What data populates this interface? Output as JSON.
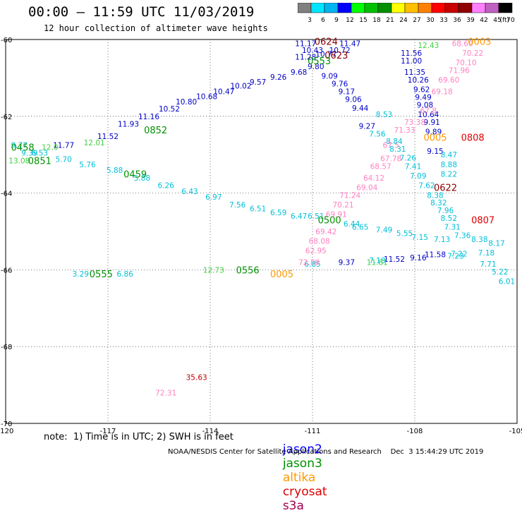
{
  "header": {
    "title": "00:00 – 11:59 UTC 11/03/2019",
    "subtitle": "12 hour collection of altimeter wave heights"
  },
  "color_scale": {
    "unit_label": "(ft)",
    "ticks": [
      "3",
      "6",
      "9",
      "12",
      "15",
      "18",
      "21",
      "24",
      "27",
      "30",
      "33",
      "36",
      "39",
      "42",
      "45",
      "70"
    ],
    "colors": [
      "#808080",
      "#00e5ff",
      "#00b4f0",
      "#0000ff",
      "#00ff00",
      "#00c000",
      "#009000",
      "#ffff00",
      "#ffc000",
      "#ff8000",
      "#ff0000",
      "#c80000",
      "#900000",
      "#ff80ff",
      "#c060c0",
      "#000000"
    ]
  },
  "footer": {
    "note": "note:  1) Time is in UTC; 2) SWH is in feet",
    "credit": "NOAA/NESDIS Center for Satellite Applications and Research    Dec  3 15:44:29 UTC 2019",
    "legend": [
      {
        "name": "jason2",
        "color": "#0000ff"
      },
      {
        "name": "jason3",
        "color": "#009000"
      },
      {
        "name": "altika",
        "color": "#ff9900"
      },
      {
        "name": "cryosat",
        "color": "#e00000"
      },
      {
        "name": "s3a",
        "color": "#a00050"
      }
    ]
  },
  "chart_data": {
    "type": "scatter",
    "title": "00:00 – 11:59 UTC 11/03/2019",
    "subtitle": "12 hour collection of altimeter wave heights",
    "xlim": [
      -120,
      -105
    ],
    "ylim": [
      -70,
      -60
    ],
    "x_ticks": [
      "-120",
      "-117",
      "-114",
      "-111",
      "-108",
      "-105"
    ],
    "y_ticks": [
      "-60",
      "-62",
      "-64",
      "-66",
      "-68",
      "-70"
    ],
    "x_tick_values": [
      -120,
      -117,
      -114,
      -111,
      -108,
      -105
    ],
    "y_tick_values": [
      -60,
      -62,
      -64,
      -66,
      -68,
      -70
    ],
    "grid": true,
    "track_labels": [
      {
        "x": -110.6,
        "y": -60.05,
        "text": "0624",
        "color": "#8b0000"
      },
      {
        "x": -110.3,
        "y": -60.4,
        "text": "0623",
        "color": "#8b0000"
      },
      {
        "x": -110.8,
        "y": -60.55,
        "text": "0553",
        "color": "#009000"
      },
      {
        "x": -106.1,
        "y": -60.05,
        "text": "0003",
        "color": "#ff9900"
      },
      {
        "x": -107.4,
        "y": -62.55,
        "text": "0005",
        "color": "#ff9900"
      },
      {
        "x": -106.3,
        "y": -62.55,
        "text": "0808",
        "color": "#e00000"
      },
      {
        "x": -107.1,
        "y": -63.85,
        "text": "0622",
        "color": "#8b0000"
      },
      {
        "x": -106.0,
        "y": -64.7,
        "text": "0807",
        "color": "#e00000"
      },
      {
        "x": -115.6,
        "y": -62.35,
        "text": "0852",
        "color": "#009000"
      },
      {
        "x": -119.5,
        "y": -62.8,
        "text": "0458",
        "color": "#009000"
      },
      {
        "x": -119.0,
        "y": -63.15,
        "text": "0851",
        "color": "#009000"
      },
      {
        "x": -116.2,
        "y": -63.5,
        "text": "0459",
        "color": "#009000"
      },
      {
        "x": -110.5,
        "y": -64.7,
        "text": "0500",
        "color": "#009000"
      },
      {
        "x": -117.2,
        "y": -66.1,
        "text": "0555",
        "color": "#009000"
      },
      {
        "x": -112.9,
        "y": -66.0,
        "text": "0556",
        "color": "#009000"
      },
      {
        "x": -111.9,
        "y": -66.1,
        "text": "0005",
        "color": "#ff9900"
      }
    ],
    "points": [
      {
        "x": -111.2,
        "y": -60.1,
        "v": "11.17",
        "c": "#0000c8"
      },
      {
        "x": -109.9,
        "y": -60.1,
        "v": "11.47",
        "c": "#0000c8"
      },
      {
        "x": -110.2,
        "y": -60.28,
        "v": "10.72",
        "c": "#0000c8"
      },
      {
        "x": -111.0,
        "y": -60.28,
        "v": "10.43",
        "c": "#0000c8"
      },
      {
        "x": -110.6,
        "y": -60.38,
        "v": "10.77",
        "c": "#0000c8"
      },
      {
        "x": -111.2,
        "y": -60.45,
        "v": "11.28",
        "c": "#0000c8"
      },
      {
        "x": -110.9,
        "y": -60.7,
        "v": "9.80",
        "c": "#0000c8"
      },
      {
        "x": -111.4,
        "y": -60.85,
        "v": "9.68",
        "c": "#0000c8"
      },
      {
        "x": -110.5,
        "y": -60.95,
        "v": "9.09",
        "c": "#0000c8"
      },
      {
        "x": -110.2,
        "y": -61.15,
        "v": "9.76",
        "c": "#0000c8"
      },
      {
        "x": -110.0,
        "y": -61.35,
        "v": "9.17",
        "c": "#0000c8"
      },
      {
        "x": -109.8,
        "y": -61.55,
        "v": "9.06",
        "c": "#0000c8"
      },
      {
        "x": -109.6,
        "y": -61.78,
        "v": "9.44",
        "c": "#0000c8"
      },
      {
        "x": -109.4,
        "y": -62.25,
        "v": "9.27",
        "c": "#0000c8"
      },
      {
        "x": -112.0,
        "y": -60.97,
        "v": "9.26",
        "c": "#0000c8"
      },
      {
        "x": -112.6,
        "y": -61.1,
        "v": "9.57",
        "c": "#0000c8"
      },
      {
        "x": -113.1,
        "y": -61.2,
        "v": "10.02",
        "c": "#0000c8"
      },
      {
        "x": -113.6,
        "y": -61.35,
        "v": "10.47",
        "c": "#0000c8"
      },
      {
        "x": -114.1,
        "y": -61.48,
        "v": "10.68",
        "c": "#0000c8"
      },
      {
        "x": -114.7,
        "y": -61.62,
        "v": "10.80",
        "c": "#0000c8"
      },
      {
        "x": -115.2,
        "y": -61.8,
        "v": "10.52",
        "c": "#0000c8"
      },
      {
        "x": -115.8,
        "y": -62.0,
        "v": "11.16",
        "c": "#0000c8"
      },
      {
        "x": -116.4,
        "y": -62.2,
        "v": "11.93",
        "c": "#0000c8"
      },
      {
        "x": -117.0,
        "y": -62.52,
        "v": "11.52",
        "c": "#0000c8"
      },
      {
        "x": -118.3,
        "y": -62.75,
        "v": "11.77",
        "c": "#0000c8"
      },
      {
        "x": -108.1,
        "y": -60.35,
        "v": "11.56",
        "c": "#0000c8"
      },
      {
        "x": -108.1,
        "y": -60.55,
        "v": "11.00",
        "c": "#0000c8"
      },
      {
        "x": -108.0,
        "y": -60.85,
        "v": "11.35",
        "c": "#0000c8"
      },
      {
        "x": -107.9,
        "y": -61.05,
        "v": "10.26",
        "c": "#0000c8"
      },
      {
        "x": -107.8,
        "y": -61.3,
        "v": "9.62",
        "c": "#0000c8"
      },
      {
        "x": -107.75,
        "y": -61.5,
        "v": "9.49",
        "c": "#0000c8"
      },
      {
        "x": -107.7,
        "y": -61.7,
        "v": "9.08",
        "c": "#0000c8"
      },
      {
        "x": -107.6,
        "y": -61.95,
        "v": "10.64",
        "c": "#0000c8"
      },
      {
        "x": -107.5,
        "y": -62.15,
        "v": "9.91",
        "c": "#0000c8"
      },
      {
        "x": -107.45,
        "y": -62.4,
        "v": "9.89",
        "c": "#0000c8"
      },
      {
        "x": -107.4,
        "y": -62.9,
        "v": "9.15",
        "c": "#0000c8"
      },
      {
        "x": -110.0,
        "y": -65.8,
        "v": "9.37",
        "c": "#0000c8"
      },
      {
        "x": -108.6,
        "y": -65.72,
        "v": "11.52",
        "c": "#0000c8"
      },
      {
        "x": -107.9,
        "y": -65.68,
        "v": "9.16",
        "c": "#0000c8"
      },
      {
        "x": -107.4,
        "y": -65.6,
        "v": "11.58",
        "c": "#0000c8"
      },
      {
        "x": -108.9,
        "y": -61.95,
        "v": "8.53",
        "c": "#00c0d8"
      },
      {
        "x": -109.1,
        "y": -62.45,
        "v": "7.56",
        "c": "#00c0d8"
      },
      {
        "x": -108.6,
        "y": -62.65,
        "v": "8.84",
        "c": "#00c0d8"
      },
      {
        "x": -108.5,
        "y": -62.85,
        "v": "8.31",
        "c": "#00c0d8"
      },
      {
        "x": -108.2,
        "y": -63.08,
        "v": "7.26",
        "c": "#00c0d8"
      },
      {
        "x": -108.05,
        "y": -63.3,
        "v": "7.41",
        "c": "#00c0d8"
      },
      {
        "x": -107.9,
        "y": -63.55,
        "v": "7.09",
        "c": "#00c0d8"
      },
      {
        "x": -107.65,
        "y": -63.8,
        "v": "7.62",
        "c": "#00c0d8"
      },
      {
        "x": -107.4,
        "y": -64.05,
        "v": "8.38",
        "c": "#00c0d8"
      },
      {
        "x": -107.3,
        "y": -64.25,
        "v": "8.32",
        "c": "#00c0d8"
      },
      {
        "x": -107.0,
        "y": -63.0,
        "v": "8.47",
        "c": "#00c0d8"
      },
      {
        "x": -107.0,
        "y": -63.25,
        "v": "8.88",
        "c": "#00c0d8"
      },
      {
        "x": -107.0,
        "y": -63.5,
        "v": "8.22",
        "c": "#00c0d8"
      },
      {
        "x": -107.1,
        "y": -64.45,
        "v": "7.96",
        "c": "#00c0d8"
      },
      {
        "x": -107.0,
        "y": -64.65,
        "v": "8.52",
        "c": "#00c0d8"
      },
      {
        "x": -106.9,
        "y": -64.88,
        "v": "7.31",
        "c": "#00c0d8"
      },
      {
        "x": -106.6,
        "y": -65.1,
        "v": "7.36",
        "c": "#00c0d8"
      },
      {
        "x": -106.1,
        "y": -65.2,
        "v": "8.38",
        "c": "#00c0d8"
      },
      {
        "x": -105.6,
        "y": -65.3,
        "v": "8.17",
        "c": "#00c0d8"
      },
      {
        "x": -105.9,
        "y": -65.55,
        "v": "7.18",
        "c": "#00c0d8"
      },
      {
        "x": -105.85,
        "y": -65.85,
        "v": "7.71",
        "c": "#00c0d8"
      },
      {
        "x": -105.5,
        "y": -66.05,
        "v": "5.22",
        "c": "#00c0d8"
      },
      {
        "x": -105.3,
        "y": -66.3,
        "v": "6.01",
        "c": "#00c0d8"
      },
      {
        "x": -109.85,
        "y": -64.8,
        "v": "6.44",
        "c": "#00c0d8"
      },
      {
        "x": -109.6,
        "y": -64.88,
        "v": "6.65",
        "c": "#00c0d8"
      },
      {
        "x": -108.9,
        "y": -64.95,
        "v": "7.49",
        "c": "#00c0d8"
      },
      {
        "x": -108.3,
        "y": -65.05,
        "v": "5.55",
        "c": "#00c0d8"
      },
      {
        "x": -107.85,
        "y": -65.15,
        "v": "7.15",
        "c": "#00c0d8"
      },
      {
        "x": -107.2,
        "y": -65.2,
        "v": "7.13",
        "c": "#00c0d8"
      },
      {
        "x": -106.7,
        "y": -65.58,
        "v": "7.22",
        "c": "#00c0d8"
      },
      {
        "x": -110.9,
        "y": -64.6,
        "v": "6.51",
        "c": "#00c0d8"
      },
      {
        "x": -111.4,
        "y": -64.6,
        "v": "6.47",
        "c": "#00c0d8"
      },
      {
        "x": -112.0,
        "y": -64.5,
        "v": "6.59",
        "c": "#00c0d8"
      },
      {
        "x": -112.6,
        "y": -64.4,
        "v": "6.51",
        "c": "#00c0d8"
      },
      {
        "x": -113.2,
        "y": -64.3,
        "v": "7.56",
        "c": "#00c0d8"
      },
      {
        "x": -113.9,
        "y": -64.1,
        "v": "6.97",
        "c": "#00c0d8"
      },
      {
        "x": -114.6,
        "y": -63.95,
        "v": "6.43",
        "c": "#00c0d8"
      },
      {
        "x": -115.3,
        "y": -63.8,
        "v": "6.26",
        "c": "#00c0d8"
      },
      {
        "x": -116.0,
        "y": -63.6,
        "v": "5.88",
        "c": "#00c0d8"
      },
      {
        "x": -116.8,
        "y": -63.4,
        "v": "5.88",
        "c": "#00c0d8"
      },
      {
        "x": -117.6,
        "y": -63.25,
        "v": "5.76",
        "c": "#00c0d8"
      },
      {
        "x": -118.3,
        "y": -63.12,
        "v": "5.70",
        "c": "#00c0d8"
      },
      {
        "x": -119.0,
        "y": -62.95,
        "v": "6.53",
        "c": "#00c0d8"
      },
      {
        "x": -117.8,
        "y": -66.1,
        "v": "3.29",
        "c": "#00c0d8"
      },
      {
        "x": -116.5,
        "y": -66.1,
        "v": "6.86",
        "c": "#00c0d8"
      },
      {
        "x": -111.0,
        "y": -65.85,
        "v": "6.85",
        "c": "#00c0d8"
      },
      {
        "x": -109.1,
        "y": -65.75,
        "v": "7.18",
        "c": "#00c0d8"
      },
      {
        "x": -106.8,
        "y": -65.63,
        "v": "7.23",
        "c": "#00c0d8"
      },
      {
        "x": -119.6,
        "y": -62.75,
        "v": "9.77",
        "c": "#00c0d8"
      },
      {
        "x": -119.3,
        "y": -62.95,
        "v": "9.39",
        "c": "#00c0d8"
      },
      {
        "x": -107.6,
        "y": -60.15,
        "v": "12.43",
        "c": "#40d040"
      },
      {
        "x": -117.4,
        "y": -62.68,
        "v": "12.01",
        "c": "#40d040"
      },
      {
        "x": -119.6,
        "y": -63.15,
        "v": "13.08",
        "c": "#40d040"
      },
      {
        "x": -118.7,
        "y": -62.8,
        "v": "12.0",
        "c": "#40d040"
      },
      {
        "x": -113.9,
        "y": -66.0,
        "v": "12.73",
        "c": "#40d040"
      },
      {
        "x": -109.1,
        "y": -65.8,
        "v": "11.81",
        "c": "#40d040"
      },
      {
        "x": -106.6,
        "y": -60.1,
        "v": "68.60",
        "c": "#ff80c0"
      },
      {
        "x": -106.3,
        "y": -60.35,
        "v": "70.22",
        "c": "#ff80c0"
      },
      {
        "x": -106.5,
        "y": -60.6,
        "v": "70.10",
        "c": "#ff80c0"
      },
      {
        "x": -106.7,
        "y": -60.8,
        "v": "71.96",
        "c": "#ff80c0"
      },
      {
        "x": -107.0,
        "y": -61.05,
        "v": "69.60",
        "c": "#ff80c0"
      },
      {
        "x": -107.2,
        "y": -61.35,
        "v": "69.18",
        "c": "#ff80c0"
      },
      {
        "x": -107.6,
        "y": -61.85,
        "v": "67.8",
        "c": "#ff80c0"
      },
      {
        "x": -108.0,
        "y": -62.15,
        "v": "73.38",
        "c": "#ff80c0"
      },
      {
        "x": -108.3,
        "y": -62.35,
        "v": "71.33",
        "c": "#ff80c0"
      },
      {
        "x": -108.7,
        "y": -62.75,
        "v": "67.5",
        "c": "#ff80c0"
      },
      {
        "x": -108.7,
        "y": -63.1,
        "v": "67.78",
        "c": "#ff80c0"
      },
      {
        "x": -109.0,
        "y": -63.3,
        "v": "68.57",
        "c": "#ff80c0"
      },
      {
        "x": -109.2,
        "y": -63.6,
        "v": "64.12",
        "c": "#ff80c0"
      },
      {
        "x": -109.4,
        "y": -63.85,
        "v": "69.04",
        "c": "#ff80c0"
      },
      {
        "x": -109.9,
        "y": -64.05,
        "v": "71.24",
        "c": "#ff80c0"
      },
      {
        "x": -110.1,
        "y": -64.3,
        "v": "70.21",
        "c": "#ff80c0"
      },
      {
        "x": -110.3,
        "y": -64.55,
        "v": "69.91",
        "c": "#ff80c0"
      },
      {
        "x": -110.6,
        "y": -65.0,
        "v": "69.42",
        "c": "#ff80c0"
      },
      {
        "x": -110.8,
        "y": -65.25,
        "v": "68.08",
        "c": "#ff80c0"
      },
      {
        "x": -110.9,
        "y": -65.5,
        "v": "62.95",
        "c": "#ff80c0"
      },
      {
        "x": -111.1,
        "y": -65.8,
        "v": "72.80",
        "c": "#ff80c0"
      },
      {
        "x": -115.3,
        "y": -69.2,
        "v": "72.31",
        "c": "#ff80c0"
      },
      {
        "x": -114.4,
        "y": -68.8,
        "v": "35.63",
        "c": "#c00000"
      }
    ]
  }
}
